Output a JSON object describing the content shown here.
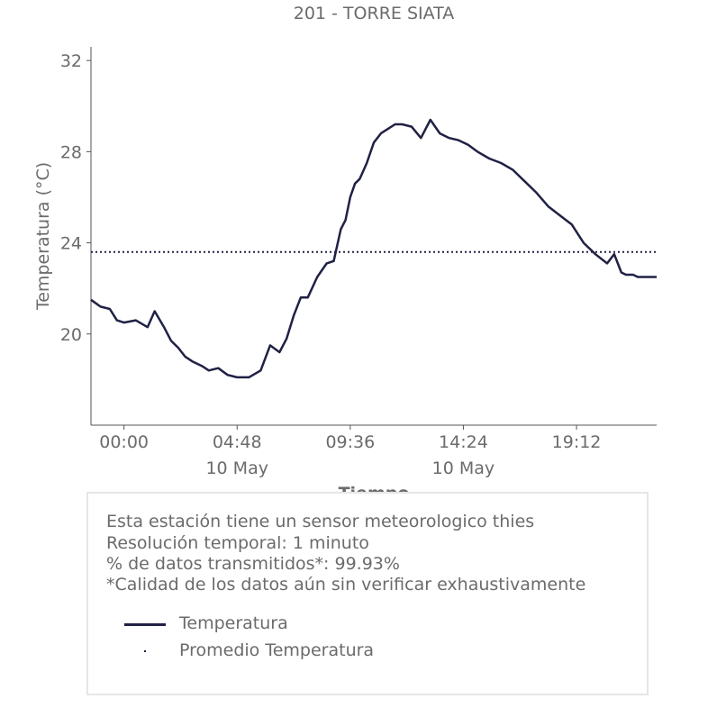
{
  "chart_data": {
    "type": "line",
    "title": "201 - TORRE SIATA",
    "xlabel": "Tiempo",
    "ylabel": "Temperatura (°C)",
    "ylim": [
      16.0,
      32.6
    ],
    "y_ticks": [
      32,
      28,
      24,
      20
    ],
    "x_ticks": [
      {
        "label": "00:00",
        "sublabel": ""
      },
      {
        "label": "04:48",
        "sublabel": "10 May"
      },
      {
        "label": "09:36",
        "sublabel": ""
      },
      {
        "label": "14:24",
        "sublabel": "10 May"
      },
      {
        "label": "19:12",
        "sublabel": ""
      }
    ],
    "x_tick_hours": [
      0,
      4.8,
      9.6,
      14.4,
      19.2
    ],
    "xlim_hours": [
      -1.4,
      22.6
    ],
    "color": "#202144",
    "series": [
      {
        "name": "Temperatura",
        "style": "solid",
        "x_hours": [
          -1.4,
          -1.0,
          -0.6,
          -0.3,
          0.0,
          0.5,
          1.0,
          1.3,
          1.7,
          2.0,
          2.3,
          2.6,
          2.9,
          3.3,
          3.6,
          4.0,
          4.4,
          4.8,
          5.3,
          5.8,
          6.2,
          6.6,
          6.9,
          7.2,
          7.5,
          7.8,
          8.2,
          8.6,
          8.9,
          9.2,
          9.4,
          9.6,
          9.8,
          10.0,
          10.3,
          10.6,
          10.9,
          11.2,
          11.5,
          11.8,
          12.2,
          12.6,
          13.0,
          13.4,
          13.8,
          14.2,
          14.6,
          15.0,
          15.5,
          16.0,
          16.5,
          17.0,
          17.5,
          18.0,
          18.5,
          19.0,
          19.5,
          20.0,
          20.5,
          20.8,
          21.1,
          21.3,
          21.6,
          21.8,
          22.1,
          22.6
        ],
        "values": [
          21.5,
          21.2,
          21.1,
          20.6,
          20.5,
          20.6,
          20.3,
          21.0,
          20.3,
          19.7,
          19.4,
          19.0,
          18.8,
          18.6,
          18.4,
          18.5,
          18.2,
          18.1,
          18.1,
          18.4,
          19.5,
          19.2,
          19.8,
          20.8,
          21.6,
          21.6,
          22.5,
          23.1,
          23.2,
          24.6,
          25.0,
          26.0,
          26.6,
          26.8,
          27.5,
          28.4,
          28.8,
          29.0,
          29.2,
          29.2,
          29.1,
          28.6,
          29.4,
          28.8,
          28.6,
          28.5,
          28.3,
          28.0,
          27.7,
          27.5,
          27.2,
          26.7,
          26.2,
          25.6,
          25.2,
          24.8,
          24.0,
          23.5,
          23.1,
          23.5,
          22.7,
          22.6,
          22.6,
          22.5,
          22.5,
          22.5
        ]
      },
      {
        "name": "Promedio Temperatura",
        "style": "dotted",
        "x_hours": [
          -1.4,
          22.6
        ],
        "values": [
          23.6,
          23.6
        ]
      }
    ]
  },
  "info": {
    "lines": [
      "Esta estación tiene un sensor meteorologico thies",
      "Resolución temporal: 1 minuto",
      "% de datos transmitidos*: 99.93%",
      "*Calidad de los datos aún sin verificar exhaustivamente"
    ]
  },
  "legend": {
    "items": [
      {
        "label": "Temperatura",
        "style": "solid"
      },
      {
        "label": "Promedio Temperatura",
        "style": "dotted"
      }
    ]
  }
}
